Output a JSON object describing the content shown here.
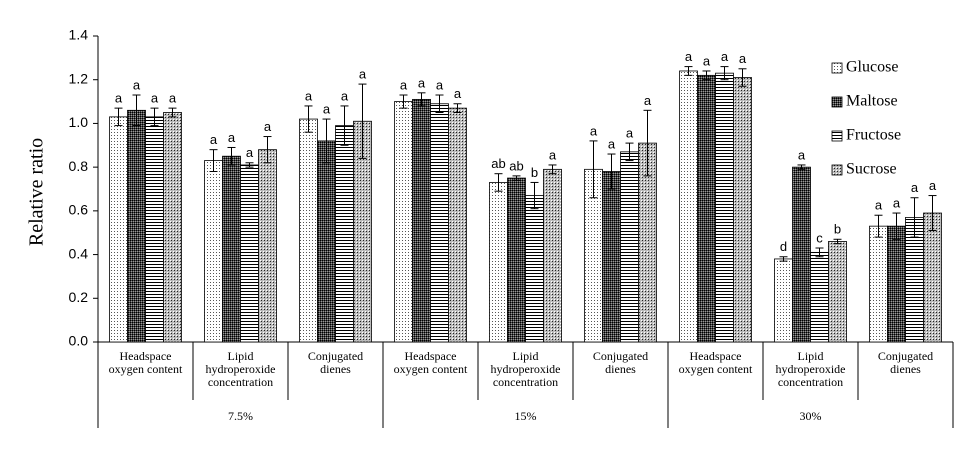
{
  "chart_data": {
    "type": "bar",
    "ylabel": "Relative ratio",
    "ylim": [
      0,
      1.4
    ],
    "yticks": [
      {
        "value": 0,
        "label": "0.0"
      },
      {
        "value": 0.2,
        "label": "0.2"
      },
      {
        "value": 0.4,
        "label": "0.4"
      },
      {
        "value": 0.6,
        "label": "0.6"
      },
      {
        "value": 0.8,
        "label": "0.8"
      },
      {
        "value": 1,
        "label": "1.0"
      },
      {
        "value": 1.2,
        "label": "1.2"
      },
      {
        "value": 1.4,
        "label": "1.4"
      }
    ],
    "categories": [
      "Headspace oxygen content",
      "Lipid hydroperoxide concentration",
      "Conjugated dienes",
      "Headspace oxygen content",
      "Lipid hydroperoxide concentration",
      "Conjugated dienes",
      "Headspace oxygen content",
      "Lipid hydroperoxide concentration",
      "Conjugated dienes"
    ],
    "groups": [
      "7.5%",
      "15%",
      "30%"
    ],
    "legend": "upper right",
    "series": [
      {
        "name": "Glucose",
        "pattern": "dots",
        "values": [
          1.03,
          0.83,
          1.02,
          1.1,
          0.73,
          0.79,
          1.24,
          0.38,
          0.53
        ],
        "errors": [
          0.04,
          0.05,
          0.06,
          0.03,
          0.04,
          0.13,
          0.02,
          0.01,
          0.05
        ],
        "letters": [
          "a",
          "a",
          "a",
          "a",
          "ab",
          "a",
          "a",
          "d",
          "a"
        ]
      },
      {
        "name": "Maltose",
        "pattern": "dark-dots",
        "values": [
          1.06,
          0.85,
          0.92,
          1.11,
          0.75,
          0.78,
          1.22,
          0.8,
          0.53
        ],
        "errors": [
          0.07,
          0.04,
          0.1,
          0.03,
          0.01,
          0.08,
          0.02,
          0.01,
          0.06
        ],
        "letters": [
          "a",
          "a",
          "a",
          "a",
          "ab",
          "a",
          "a",
          "a",
          "a"
        ]
      },
      {
        "name": "Fructose",
        "pattern": "hlines",
        "values": [
          1.03,
          0.81,
          0.99,
          1.09,
          0.67,
          0.87,
          1.23,
          0.41,
          0.57
        ],
        "errors": [
          0.04,
          0.01,
          0.09,
          0.04,
          0.06,
          0.04,
          0.03,
          0.02,
          0.09
        ],
        "letters": [
          "a",
          "a",
          "a",
          "a",
          "b",
          "a",
          "a",
          "c",
          "a"
        ]
      },
      {
        "name": "Sucrose",
        "pattern": "cross",
        "values": [
          1.05,
          0.88,
          1.01,
          1.07,
          0.79,
          0.91,
          1.21,
          0.46,
          0.59
        ],
        "errors": [
          0.02,
          0.06,
          0.17,
          0.02,
          0.02,
          0.15,
          0.04,
          0.01,
          0.08
        ],
        "letters": [
          "a",
          "a",
          "a",
          "a",
          "a",
          "a",
          "a",
          "b",
          "a"
        ]
      }
    ]
  }
}
